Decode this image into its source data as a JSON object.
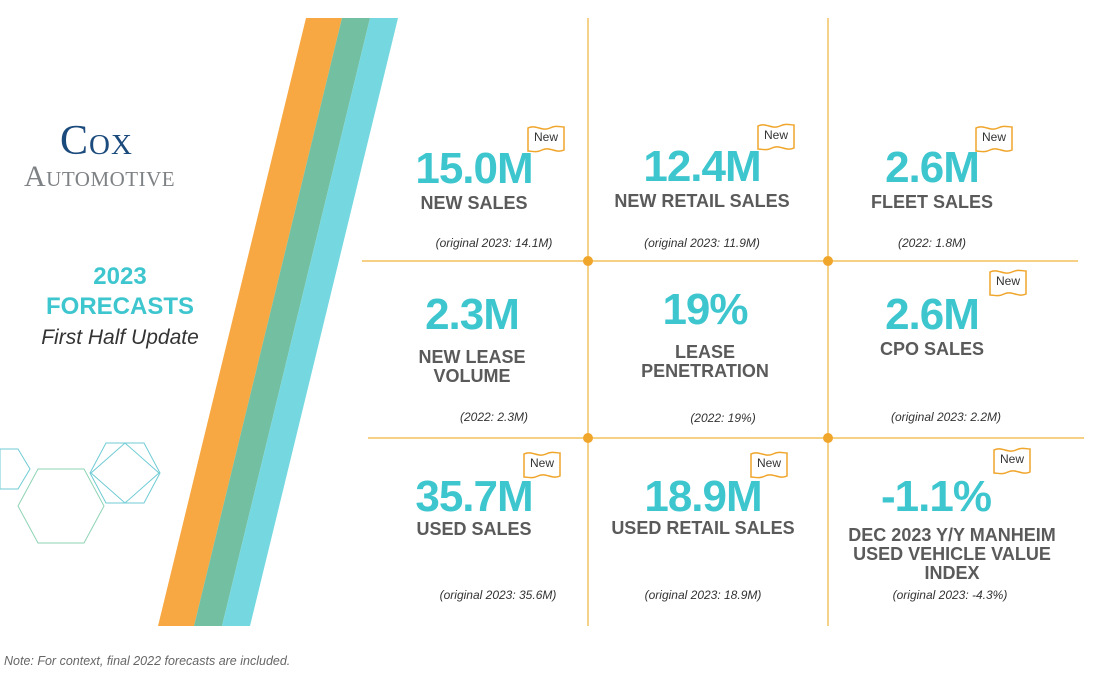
{
  "logo": {
    "line1": "Cox",
    "line2": "Automotive"
  },
  "forecast": {
    "year": "2023",
    "title": "FORECASTS",
    "subtitle": "First Half Update"
  },
  "badge_text": "New",
  "colors": {
    "accent": "#3ec6cf",
    "orange": "#f8a842",
    "green": "#72bfa1",
    "cyan": "#75d8e0",
    "grid": "#f0b53b"
  },
  "cells": [
    {
      "value": "15.0M",
      "label": "NEW SALES",
      "note": "(original 2023: 14.1M)",
      "is_new": true
    },
    {
      "value": "12.4M",
      "label": "NEW RETAIL SALES",
      "note": "(original 2023: 11.9M)",
      "is_new": true
    },
    {
      "value": "2.6M",
      "label": "FLEET SALES",
      "note": "(2022: 1.8M)",
      "is_new": true
    },
    {
      "value": "2.3M",
      "label": "NEW LEASE VOLUME",
      "note": "(2022: 2.3M)",
      "is_new": false
    },
    {
      "value": "19%",
      "label": "LEASE PENETRATION",
      "note": "(2022: 19%)",
      "is_new": false
    },
    {
      "value": "2.6M",
      "label": "CPO SALES",
      "note": "(original 2023:  2.2M)",
      "is_new": true
    },
    {
      "value": "35.7M",
      "label": "USED SALES",
      "note": "(original 2023: 35.6M)",
      "is_new": true
    },
    {
      "value": "18.9M",
      "label": "USED RETAIL SALES",
      "note": "(original 2023: 18.9M)",
      "is_new": true
    },
    {
      "value": "-1.1%",
      "label": "DEC 2023 Y/Y MANHEIM USED VEHICLE VALUE INDEX",
      "note": "(original 2023: -4.3%)",
      "is_new": true
    }
  ],
  "footnote": "Note: For context, final 2022 forecasts are included."
}
